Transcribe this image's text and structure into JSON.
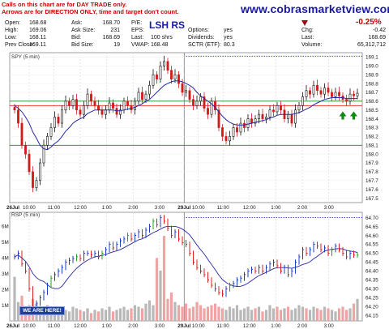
{
  "header": {
    "note_line1": "Calls on this chart are for DAY TRADE only.",
    "note_line2": "Arrows are for DIRECTION ONLY, time and target don't count.",
    "website": "www.cobrasmarketview.com",
    "overlay_title": "LSH RS",
    "change_pct": "-0.25%"
  },
  "quote": {
    "open_label": "Open:",
    "open_value": "168.68",
    "high_label": "High:",
    "high_value": "169.06",
    "low_label": "Low:",
    "low_value": "168.11",
    "prev_close_label": "Prev Close:",
    "prev_close_value": "169.11",
    "ask_label": "Ask:",
    "ask_value": "168.70",
    "ask_size_label": "Ask Size:",
    "ask_size_value": "231",
    "bid_label": "Bid:",
    "bid_value": "168.69",
    "bid_size_label": "Bid Size:",
    "bid_size_value": "19",
    "pe_label": "P/E:",
    "eps_label": "EPS:",
    "last_label": "Last:",
    "last_shares": "100 shrs",
    "vwap_label": "VWAP:",
    "vwap_value": "168.48",
    "options_label": "Options:",
    "options_value": "yes",
    "dividends_label": "Dividends:",
    "dividends_value": "yes",
    "sctr_label": "SCTR (ETF):",
    "sctr_value": "80.3",
    "chg_label": "Chg:",
    "chg_value": "-0.42",
    "last_price_label": "Last:",
    "last_price_value": "168.69",
    "volume_label": "Volume:",
    "volume_value": "65,312,712"
  },
  "labels": {
    "price_panel": "SPY (5 min)",
    "rsp_panel": "RSP (5 min)",
    "we_are_here": "WE ARE HERE!"
  },
  "colors": {
    "up_candle": "#111111",
    "down_candle": "#d11a1a",
    "ma_line": "#2727a8",
    "red_line": "#e02020",
    "green_line": "#1a8a1a",
    "dotted_line": "#3333cc",
    "arrow": "#0d8a0d",
    "rsp_up": "#1f3fc0",
    "rsp_down": "#d82020",
    "rsp_green": "#1fa01f",
    "volume_up": "#b8b8b8",
    "volume_down": "#f0a3a3"
  },
  "chart_data": [
    {
      "type": "candlestick",
      "title": "SPY (5 min)",
      "x_tick_labels": [
        "26Jul",
        "10:00",
        "11:00",
        "12:00",
        "1:00",
        "2:00",
        "3:00",
        "29Jul",
        "10:00",
        "11:00",
        "12:00",
        "1:00",
        "2:00",
        "3:00"
      ],
      "y_tick_labels": [
        "169.1",
        "169.0",
        "168.9",
        "168.8",
        "168.7",
        "168.6",
        "168.5",
        "168.4",
        "168.3",
        "168.2",
        "168.1",
        "168.0",
        "167.9",
        "167.8",
        "167.7",
        "167.6",
        "167.5"
      ],
      "ylim": [
        167.45,
        169.15
      ],
      "horizontal_lines": [
        {
          "value": 169.11,
          "style": "dotted",
          "color": "#3333cc"
        },
        {
          "value": 168.55,
          "style": "solid",
          "color": "#e02020"
        },
        {
          "value": 168.6,
          "style": "solid",
          "color": "#1a8a1a"
        },
        {
          "value": 168.1,
          "style": "solid",
          "color": "#1a8a1a"
        }
      ],
      "close_series": [
        168.5,
        168.35,
        168.1,
        168.0,
        167.8,
        167.62,
        167.7,
        167.9,
        168.1,
        168.2,
        168.3,
        168.42,
        168.35,
        168.5,
        168.6,
        168.55,
        168.62,
        168.5,
        168.45,
        168.55,
        168.68,
        168.6,
        168.55,
        168.5,
        168.45,
        168.5,
        168.58,
        168.52,
        168.45,
        168.5,
        168.6,
        168.55,
        168.5,
        168.6,
        168.7,
        168.62,
        168.68,
        168.78,
        168.9,
        168.85,
        169.0,
        169.05,
        168.95,
        168.85,
        168.9,
        168.8,
        168.7,
        168.72,
        168.62,
        168.55,
        168.6,
        168.65,
        168.52,
        168.45,
        168.6,
        168.5,
        168.3,
        168.2,
        168.15,
        168.2,
        168.3,
        168.25,
        168.35,
        168.3,
        168.4,
        168.35,
        168.4,
        168.45,
        168.4,
        168.42,
        168.5,
        168.48,
        168.55,
        168.5,
        168.4,
        168.45,
        168.35,
        168.5,
        168.55,
        168.65,
        168.72,
        168.68,
        168.78,
        168.72,
        168.68,
        168.75,
        168.7,
        168.65,
        168.7,
        168.66,
        168.62,
        168.6,
        168.68,
        168.66,
        168.69
      ],
      "ma_series": [
        168.55,
        168.52,
        168.48,
        168.42,
        168.35,
        168.25,
        168.18,
        168.1,
        168.06,
        168.05,
        168.08,
        168.12,
        168.15,
        168.2,
        168.26,
        168.3,
        168.35,
        168.38,
        168.4,
        168.42,
        168.46,
        168.48,
        168.5,
        168.5,
        168.5,
        168.5,
        168.5,
        168.5,
        168.49,
        168.49,
        168.5,
        168.51,
        168.52,
        168.53,
        168.55,
        168.57,
        168.6,
        168.62,
        168.66,
        168.7,
        168.74,
        168.78,
        168.8,
        168.82,
        168.83,
        168.83,
        168.82,
        168.8,
        168.78,
        168.75,
        168.7,
        168.66,
        168.63,
        168.6,
        168.57,
        168.53,
        168.48,
        168.43,
        168.39,
        168.36,
        168.34,
        168.33,
        168.33,
        168.33,
        168.34,
        168.35,
        168.36,
        168.37,
        168.38,
        168.39,
        168.41,
        168.42,
        168.44,
        168.45,
        168.45,
        168.45,
        168.45,
        168.46,
        168.47,
        168.49,
        168.51,
        168.53,
        168.56,
        168.58,
        168.6,
        168.62,
        168.63,
        168.64,
        168.64,
        168.64,
        168.64,
        168.63,
        168.63,
        168.63,
        168.63
      ],
      "arrows": [
        {
          "direction": "up",
          "value": 168.52,
          "index": 90
        },
        {
          "direction": "up",
          "value": 168.52,
          "index": 93
        }
      ]
    },
    {
      "type": "line",
      "title": "RSP (5 min)",
      "y_tick_labels": [
        "64.70",
        "64.65",
        "64.60",
        "64.55",
        "64.50",
        "64.45",
        "64.40",
        "64.35",
        "64.30",
        "64.25",
        "64.20",
        "64.15"
      ],
      "ylim": [
        64.12,
        64.73
      ],
      "volume_tick_labels": [
        "6M",
        "5M",
        "4M",
        "3M",
        "2M",
        "1M"
      ],
      "volume_lim": [
        0,
        6.9
      ],
      "horizontal_lines": [
        {
          "value": 64.7,
          "style": "dotted",
          "color": "#3333cc"
        }
      ],
      "close_series": [
        64.48,
        64.5,
        64.44,
        64.4,
        64.3,
        64.2,
        64.22,
        64.25,
        64.28,
        64.32,
        64.36,
        64.38,
        64.4,
        64.42,
        64.45,
        64.46,
        64.47,
        64.48,
        64.47,
        64.5,
        64.5,
        64.49,
        64.5,
        64.48,
        64.5,
        64.52,
        64.55,
        64.53,
        64.55,
        64.57,
        64.58,
        64.6,
        64.58,
        64.6,
        64.62,
        64.6,
        64.63,
        64.65,
        64.68,
        64.66,
        64.7,
        64.68,
        64.64,
        64.6,
        64.62,
        64.58,
        64.56,
        64.55,
        64.5,
        64.45,
        64.42,
        64.4,
        64.38,
        64.35,
        64.32,
        64.3,
        64.28,
        64.27,
        64.3,
        64.32,
        64.33,
        64.35,
        64.36,
        64.38,
        64.4,
        64.41,
        64.4,
        64.42,
        64.4,
        64.42,
        64.44,
        64.45,
        64.43,
        64.4,
        64.42,
        64.38,
        64.4,
        64.45,
        64.48,
        64.52,
        64.5,
        64.52,
        64.55,
        64.54,
        64.52,
        64.53,
        64.5,
        64.52,
        64.54,
        64.52,
        64.5,
        64.48,
        64.5,
        64.49,
        64.49
      ],
      "volume_series": [
        2.8,
        1.2,
        1.6,
        0.8,
        1.0,
        1.4,
        1.1,
        0.9,
        0.8,
        1.0,
        0.7,
        0.9,
        0.6,
        0.8,
        0.7,
        0.6,
        0.9,
        0.8,
        0.7,
        0.6,
        0.8,
        0.5,
        0.7,
        0.6,
        0.8,
        0.7,
        0.9,
        0.6,
        0.7,
        0.8,
        0.9,
        0.7,
        0.8,
        1.0,
        0.9,
        0.8,
        1.1,
        1.3,
        1.0,
        4.0,
        3.2,
        5.4,
        1.4,
        1.8,
        1.2,
        1.0,
        0.9,
        1.1,
        0.8,
        0.9,
        1.2,
        1.0,
        0.8,
        0.9,
        1.0,
        1.1,
        0.9,
        0.8,
        0.7,
        0.9,
        0.8,
        1.0,
        0.7,
        0.8,
        0.9,
        0.7,
        0.8,
        0.9,
        0.6,
        0.7,
        1.0,
        0.8,
        0.9,
        0.7,
        0.8,
        0.9,
        0.7,
        0.8,
        1.0,
        0.9,
        0.8,
        0.7,
        0.9,
        0.8,
        0.7,
        0.9,
        0.8,
        0.7,
        0.6,
        0.8,
        0.9,
        0.7,
        0.8,
        1.1,
        1.4
      ]
    }
  ]
}
